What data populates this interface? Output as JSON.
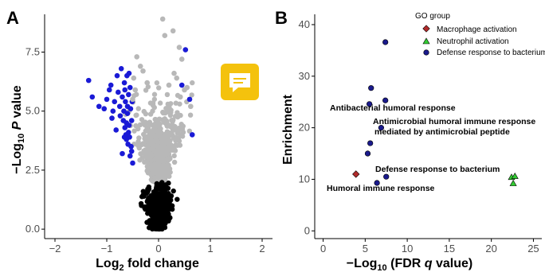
{
  "colors": {
    "blue": "#1a1ad6",
    "grey": "#b8b8b8",
    "black": "#000000",
    "macrophage": "#b02a2a",
    "neutrophil": "#33cc33",
    "defense": "#1a1a8c",
    "badge": "#f4c20d"
  },
  "icons": {
    "badge": "comment-icon"
  },
  "panels": {
    "a": {
      "letter": "A"
    },
    "b": {
      "letter": "B"
    }
  },
  "chart_data": [
    {
      "type": "scatter",
      "panel": "A",
      "title": "",
      "xlabel_main": "Log",
      "xlabel_sub": "2",
      "xlabel_tail": " fold change",
      "ylabel_pre": "−Log",
      "ylabel_sub": "10",
      "ylabel_italic": " P",
      "ylabel_tail": " value",
      "xlim": [
        -2.2,
        2.2
      ],
      "ylim": [
        -0.4,
        9.1
      ],
      "xticks": [
        -2,
        -1,
        0,
        1,
        2
      ],
      "xtick_labels": [
        "−2",
        "−1",
        "0",
        "1",
        "2"
      ],
      "yticks": [
        0,
        2.5,
        5,
        7.5
      ],
      "ytick_labels": [
        "0.0",
        "2.5",
        "5.0",
        "7.5"
      ],
      "series": [
        {
          "role": "significant-down",
          "color": "#1a1ad6",
          "points": [
            [
              -1.35,
              6.3
            ],
            [
              -1.28,
              5.6
            ],
            [
              -1.15,
              5.2
            ],
            [
              -1.05,
              5.1
            ],
            [
              -0.95,
              5.9
            ],
            [
              -0.92,
              6.1
            ],
            [
              -0.88,
              5.0
            ],
            [
              -0.85,
              5.4
            ],
            [
              -0.8,
              6.5
            ],
            [
              -0.78,
              5.8
            ],
            [
              -0.75,
              5.2
            ],
            [
              -0.74,
              4.8
            ],
            [
              -0.72,
              6.8
            ],
            [
              -0.7,
              5.6
            ],
            [
              -0.68,
              4.6
            ],
            [
              -0.67,
              5.0
            ],
            [
              -0.66,
              6.2
            ],
            [
              -0.65,
              4.3
            ],
            [
              -0.64,
              5.4
            ],
            [
              -0.63,
              4.0
            ],
            [
              -0.62,
              3.8
            ],
            [
              -0.61,
              6.5
            ],
            [
              -0.6,
              4.9
            ],
            [
              -0.59,
              3.6
            ],
            [
              -0.58,
              5.7
            ],
            [
              -0.57,
              4.4
            ],
            [
              -0.56,
              3.9
            ],
            [
              -0.55,
              6.0
            ],
            [
              -0.54,
              5.1
            ],
            [
              -0.53,
              3.5
            ],
            [
              -0.52,
              4.6
            ],
            [
              -0.52,
              3.3
            ],
            [
              -0.51,
              5.4
            ],
            [
              -0.5,
              2.8
            ],
            [
              -0.7,
              3.2
            ],
            [
              -0.66,
              3.9
            ],
            [
              -0.62,
              4.5
            ],
            [
              -0.58,
              4.1
            ],
            [
              -0.55,
              3.1
            ],
            [
              -0.6,
              5.2
            ],
            [
              -0.65,
              5.9
            ],
            [
              -0.57,
              6.6
            ],
            [
              -1.0,
              5.5
            ],
            [
              -0.9,
              4.7
            ],
            [
              -0.82,
              4.2
            ]
          ]
        },
        {
          "role": "significant-up",
          "color": "#1a1ad6",
          "points": [
            [
              0.52,
              7.6
            ],
            [
              0.6,
              5.5
            ],
            [
              0.65,
              4.0
            ],
            [
              0.45,
              6.1
            ]
          ]
        },
        {
          "role": "not-significant-high",
          "color": "#b8b8b8",
          "points": [
            [
              0.08,
              8.9
            ],
            [
              0.12,
              8.2
            ],
            [
              0.28,
              8.4
            ],
            [
              0.4,
              7.7
            ],
            [
              0.45,
              7.2
            ],
            [
              -0.42,
              7.3
            ],
            [
              -0.35,
              6.9
            ],
            [
              -0.3,
              6.7
            ],
            [
              -0.48,
              6.4
            ],
            [
              -0.45,
              5.9
            ],
            [
              0.3,
              6.6
            ],
            [
              0.35,
              6.4
            ],
            [
              0.5,
              5.9
            ],
            [
              0.55,
              6.0
            ],
            [
              0.42,
              5.6
            ],
            [
              -0.22,
              6.2
            ],
            [
              0.2,
              6.1
            ],
            [
              -0.5,
              5.5
            ],
            [
              0.62,
              5.2
            ]
          ]
        },
        {
          "role": "not-significant-significance-threshold",
          "color": "#000000"
        }
      ]
    },
    {
      "type": "scatter",
      "panel": "B",
      "title": "",
      "xlabel_pre": "−Log",
      "xlabel_sub": "10",
      "xlabel_mid": " (FDR ",
      "xlabel_italic": "q",
      "xlabel_tail": " value)",
      "ylabel": "Enrichment",
      "xlim": [
        -1,
        26
      ],
      "ylim": [
        -1.5,
        42
      ],
      "xticks": [
        0,
        5,
        10,
        15,
        20,
        25
      ],
      "xtick_labels": [
        "0",
        "5",
        "10",
        "15",
        "20",
        "25"
      ],
      "yticks": [
        0,
        10,
        20,
        30,
        40
      ],
      "ytick_labels": [
        "0",
        "10",
        "20",
        "30",
        "40"
      ],
      "legend": {
        "title": "GO group",
        "position": "top-right",
        "entries": [
          "Macrophage activation",
          "Neutrophil activation",
          "Defense response to bacterium"
        ]
      },
      "series": [
        {
          "name": "Macrophage activation",
          "marker": "diamond",
          "color": "#b02a2a",
          "points": [
            [
              3.9,
              11.0
            ]
          ]
        },
        {
          "name": "Neutrophil activation",
          "marker": "triangle",
          "color": "#33cc33",
          "points": [
            [
              22.4,
              10.4
            ],
            [
              22.8,
              10.6
            ],
            [
              22.6,
              9.2
            ]
          ]
        },
        {
          "name": "Defense response to bacterium",
          "marker": "circle",
          "color": "#1a1a8c",
          "points": [
            [
              7.4,
              36.6
            ],
            [
              5.7,
              27.7
            ],
            [
              7.4,
              25.3
            ],
            [
              5.5,
              24.6
            ],
            [
              6.9,
              20.0
            ],
            [
              5.6,
              17.0
            ],
            [
              5.3,
              15.0
            ],
            [
              7.5,
              10.5
            ],
            [
              6.4,
              9.3
            ]
          ]
        }
      ],
      "annotations": [
        {
          "text": "Antibacterial humoral response",
          "x": 5.5,
          "y": 24.6
        },
        {
          "text": "Antimicrobial humoral immune response",
          "x": 6.9,
          "y": 20.0
        },
        {
          "text": "mediated by antimicrobial peptide",
          "x": 6.9,
          "y": 20.0
        },
        {
          "text": "Defense response to bacterium",
          "x": 7.5,
          "y": 10.5
        },
        {
          "text": "Humoral immune response",
          "x": 6.4,
          "y": 9.3
        }
      ]
    }
  ]
}
